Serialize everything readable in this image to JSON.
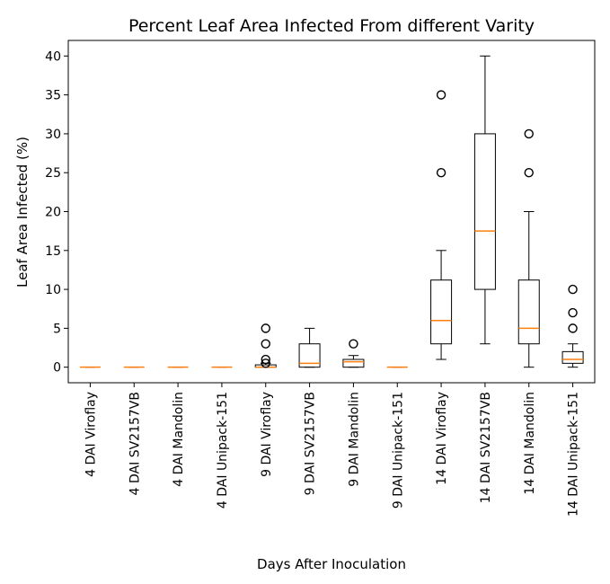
{
  "chart_data": {
    "type": "box",
    "title": "Percent Leaf Area Infected From different Varity",
    "xlabel": "Days After Inoculation",
    "ylabel": "Leaf Area Infected (%)",
    "ylim": [
      -2,
      42
    ],
    "yticks": [
      0,
      5,
      10,
      15,
      20,
      25,
      30,
      35,
      40
    ],
    "grid": false,
    "categories": [
      "4 DAI Viroflay",
      "4 DAI SV2157VB",
      "4 DAI Mandolin",
      "4 DAI Unipack-151",
      "9 DAI Viroflay",
      "9 DAI SV2157VB",
      "9 DAI Mandolin",
      "9 DAI Unipack-151",
      "14 DAI Viroflay",
      "14 DAI SV2157VB",
      "14 DAI Mandolin",
      "14 DAI Unipack-151"
    ],
    "boxes": [
      {
        "whislo": 0,
        "q1": 0,
        "med": 0,
        "q3": 0,
        "whishi": 0,
        "fliers": []
      },
      {
        "whislo": 0,
        "q1": 0,
        "med": 0,
        "q3": 0,
        "whishi": 0,
        "fliers": []
      },
      {
        "whislo": 0,
        "q1": 0,
        "med": 0,
        "q3": 0,
        "whishi": 0,
        "fliers": []
      },
      {
        "whislo": 0,
        "q1": 0,
        "med": 0,
        "q3": 0,
        "whishi": 0,
        "fliers": []
      },
      {
        "whislo": 0,
        "q1": 0,
        "med": 0,
        "q3": 0.3,
        "whishi": 0.5,
        "fliers": [
          1,
          3,
          5,
          0.5
        ]
      },
      {
        "whislo": 0,
        "q1": 0,
        "med": 0.5,
        "q3": 3,
        "whishi": 5,
        "fliers": []
      },
      {
        "whislo": 0,
        "q1": 0,
        "med": 0.7,
        "q3": 1,
        "whishi": 1.5,
        "fliers": [
          3
        ]
      },
      {
        "whislo": 0,
        "q1": 0,
        "med": 0,
        "q3": 0,
        "whishi": 0,
        "fliers": []
      },
      {
        "whislo": 1,
        "q1": 3,
        "med": 6,
        "q3": 11.2,
        "whishi": 15,
        "fliers": [
          25,
          35
        ]
      },
      {
        "whislo": 3,
        "q1": 10,
        "med": 17.5,
        "q3": 30,
        "whishi": 40,
        "fliers": []
      },
      {
        "whislo": 0,
        "q1": 3,
        "med": 5,
        "q3": 11.2,
        "whishi": 20,
        "fliers": [
          25,
          30
        ]
      },
      {
        "whislo": 0,
        "q1": 0.5,
        "med": 1,
        "q3": 2,
        "whishi": 3,
        "fliers": [
          5,
          7,
          10
        ]
      }
    ],
    "colors": {
      "box": "#000000",
      "median": "#ff7f0e",
      "flier": "#000000"
    }
  }
}
